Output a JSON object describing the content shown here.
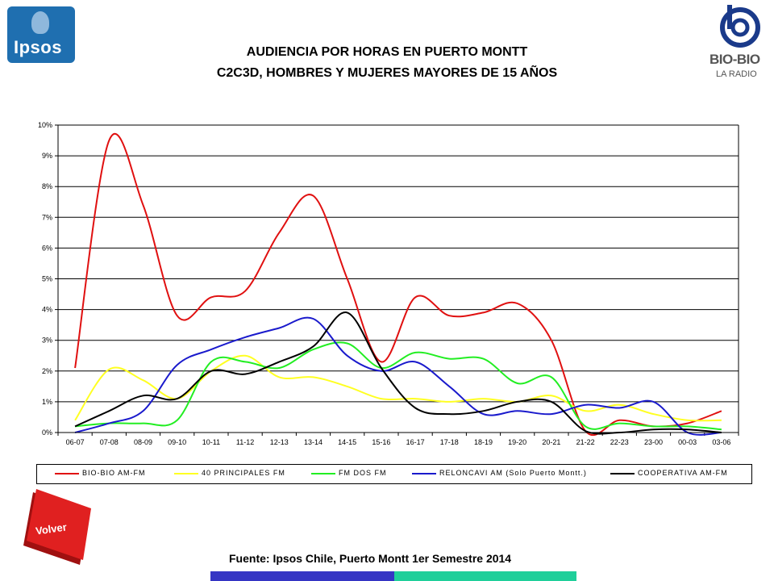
{
  "logos": {
    "ipsos": "Ipsos",
    "biobio": "BIO-BIO",
    "biobio_sub": "LA RADIO"
  },
  "title_line1": "AUDIENCIA POR HORAS EN PUERTO MONTT",
  "title_line2": "C2C3D, HOMBRES Y MUJERES MAYORES DE 15 AÑOS",
  "volver_label": "Volver",
  "source": "Fuente: Ipsos Chile, Puerto Montt 1er Semestre 2014",
  "chart_data": {
    "type": "line",
    "categories": [
      "06-07",
      "07-08",
      "08-09",
      "09-10",
      "10-11",
      "11-12",
      "12-13",
      "13-14",
      "14-15",
      "15-16",
      "16-17",
      "17-18",
      "18-19",
      "19-20",
      "20-21",
      "21-22",
      "22-23",
      "23-00",
      "00-03",
      "03-06"
    ],
    "ylim": [
      0,
      10
    ],
    "yticks": [
      0,
      1,
      2,
      3,
      4,
      5,
      6,
      7,
      8,
      9,
      10
    ],
    "ytick_labels": [
      "0%",
      "1%",
      "2%",
      "3%",
      "4%",
      "5%",
      "6%",
      "7%",
      "8%",
      "9%",
      "10%"
    ],
    "grid": true,
    "legend": "bottom",
    "series": [
      {
        "name": "BIO-BIO AM-FM",
        "color": "#e01010",
        "values": [
          2.1,
          9.5,
          7.4,
          3.8,
          4.4,
          4.6,
          6.5,
          7.7,
          5.0,
          2.3,
          4.4,
          3.8,
          3.9,
          4.2,
          3.0,
          0.05,
          0.4,
          0.2,
          0.3,
          0.7
        ]
      },
      {
        "name": "40 PRINCIPALES FM",
        "color": "#ffff22",
        "values": [
          0.4,
          2.05,
          1.7,
          1.1,
          2.0,
          2.5,
          1.8,
          1.8,
          1.5,
          1.1,
          1.1,
          1.0,
          1.1,
          1.0,
          1.2,
          0.7,
          0.9,
          0.6,
          0.4,
          0.4
        ]
      },
      {
        "name": "FM DOS FM",
        "color": "#22ee22",
        "values": [
          0.2,
          0.3,
          0.3,
          0.4,
          2.3,
          2.3,
          2.1,
          2.7,
          2.9,
          2.1,
          2.6,
          2.4,
          2.4,
          1.6,
          1.8,
          0.2,
          0.3,
          0.2,
          0.2,
          0.1
        ]
      },
      {
        "name": "RELONCAVI AM (Solo Puerto Montt.)",
        "color": "#1a1acc",
        "values": [
          0.0,
          0.3,
          0.7,
          2.2,
          2.7,
          3.1,
          3.4,
          3.7,
          2.5,
          2.0,
          2.3,
          1.5,
          0.6,
          0.7,
          0.6,
          0.9,
          0.8,
          1.0,
          0.0,
          0.0
        ]
      },
      {
        "name": "COOPERATIVA AM-FM",
        "color": "#000000",
        "values": [
          0.2,
          0.7,
          1.2,
          1.1,
          2.0,
          1.9,
          2.3,
          2.8,
          3.9,
          2.1,
          0.8,
          0.6,
          0.7,
          1.0,
          1.0,
          0.05,
          0.0,
          0.1,
          0.1,
          0.0
        ]
      }
    ]
  }
}
